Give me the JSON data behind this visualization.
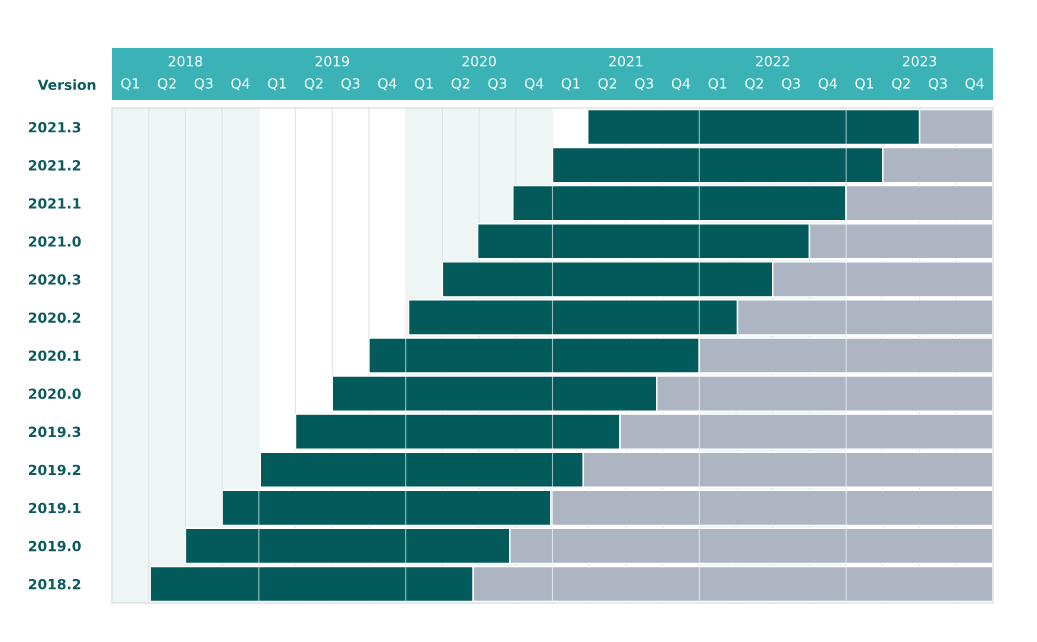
{
  "chart_data": {
    "type": "bar",
    "orientation": "horizontal",
    "ylabel": "Version",
    "categories": [
      "2021.3",
      "2021.2",
      "2021.1",
      "2021.0",
      "2020.3",
      "2020.2",
      "2020.1",
      "2020.0",
      "2019.3",
      "2019.2",
      "2019.1",
      "2019.0",
      "2018.2"
    ],
    "series": [
      {
        "color": "#025a5a",
        "base": [
          2021.24,
          2021.0,
          2020.73,
          2020.49,
          2020.25,
          2020.02,
          2019.75,
          2019.5,
          2019.25,
          2019.01,
          2018.75,
          2018.5,
          2018.26
        ],
        "values": [
          2.26,
          2.25,
          2.27,
          2.26,
          2.25,
          2.24,
          2.25,
          2.21,
          2.21,
          2.2,
          2.24,
          2.21,
          2.2
        ]
      },
      {
        "color": "#adb5c3",
        "base": [
          2023.5,
          2023.25,
          2023.0,
          2022.75,
          2022.5,
          2022.26,
          2022.0,
          2021.71,
          2021.46,
          2021.21,
          2020.99,
          2020.71,
          2020.46
        ],
        "values": [
          0.5,
          0.75,
          1.0,
          1.25,
          1.5,
          1.74,
          2.0,
          2.29,
          2.54,
          2.79,
          3.01,
          3.29,
          3.54
        ]
      }
    ],
    "xlim": [
      2018,
      2024
    ],
    "xticks": [
      {
        "value": 2018.5,
        "label": "2018"
      },
      {
        "value": 2019.5,
        "label": "2019"
      },
      {
        "value": 2020.5,
        "label": "2020"
      },
      {
        "value": 2021.5,
        "label": "2021"
      },
      {
        "value": 2022.5,
        "label": "2022"
      },
      {
        "value": 2023.5,
        "label": "2023"
      }
    ],
    "annotations": [
      "Q1",
      "Q2",
      "Q3",
      "Q4",
      "Q1",
      "Q2",
      "Q3",
      "Q4",
      "Q1",
      "Q2",
      "Q3",
      "Q4",
      "Q1",
      "Q2",
      "Q3",
      "Q4",
      "Q1",
      "Q2",
      "Q3",
      "Q4",
      "Q1",
      "Q2",
      "Q3",
      "Q4"
    ],
    "bands": [
      {
        "axis": "x",
        "from": 2018,
        "to": 2019,
        "color": "#eef5f5"
      },
      {
        "axis": "x",
        "from": 2020,
        "to": 2021,
        "color": "#eef5f5"
      },
      {
        "axis": "x",
        "from": 2022,
        "to": 2023,
        "color": "#eef5f5"
      }
    ],
    "grid": "x"
  }
}
